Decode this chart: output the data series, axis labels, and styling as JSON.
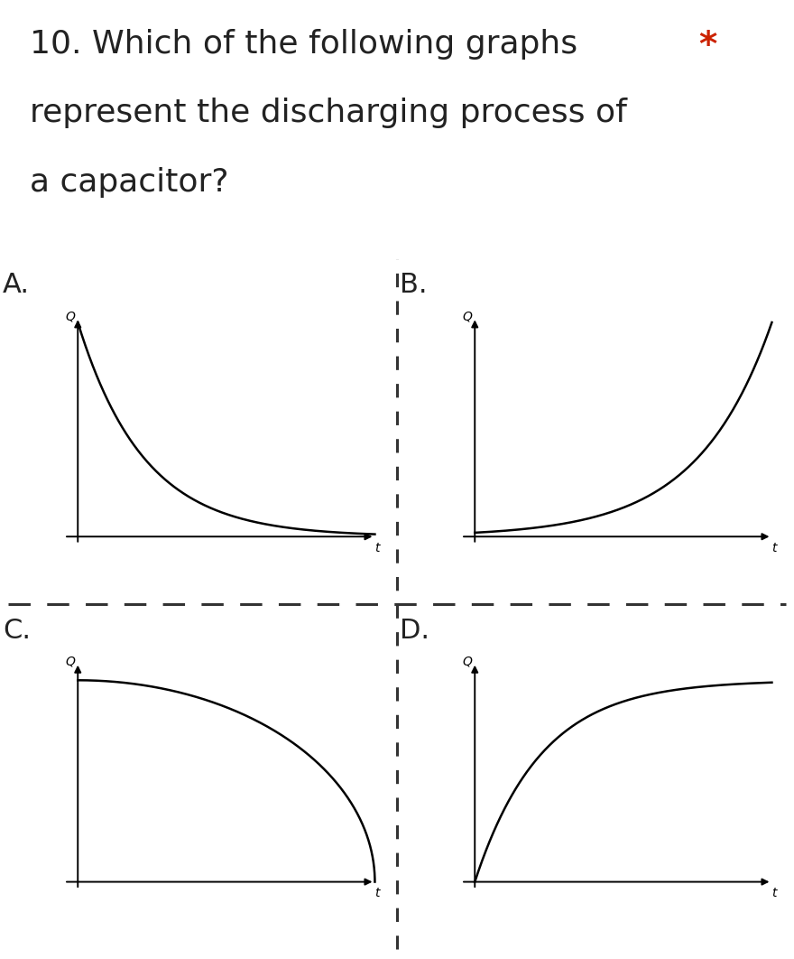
{
  "title_lines": [
    "10. Which of the following graphs",
    "represent the discharging process of",
    "a capacitor?"
  ],
  "star_text": "*",
  "star_color": "#cc2200",
  "labels": [
    "A.",
    "B.",
    "C.",
    "D."
  ],
  "background_color": "#ffffff",
  "curve_color": "#000000",
  "divider_color": "#333333",
  "title_fontsize": 26,
  "label_fontsize": 22,
  "axis_label_fontsize": 12
}
